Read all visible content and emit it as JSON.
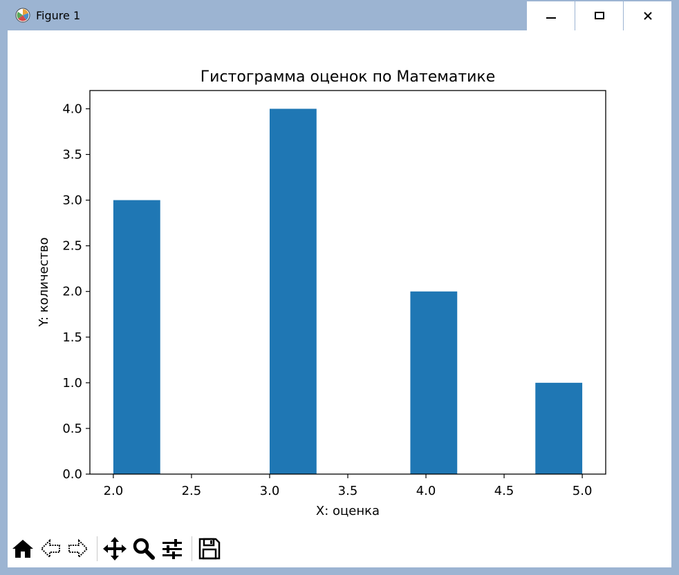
{
  "window": {
    "title": "Figure 1",
    "icon": "matplotlib-icon",
    "controls": {
      "minimize": "minimize-icon",
      "maximize": "maximize-icon",
      "close": "close-icon"
    }
  },
  "toolbar": {
    "buttons": [
      {
        "name": "home",
        "icon": "home-icon"
      },
      {
        "name": "back",
        "icon": "back-arrow-icon"
      },
      {
        "name": "forward",
        "icon": "forward-arrow-icon"
      },
      {
        "name": "pan",
        "icon": "move-icon"
      },
      {
        "name": "zoom",
        "icon": "zoom-icon"
      },
      {
        "name": "subplots",
        "icon": "sliders-icon"
      },
      {
        "name": "save",
        "icon": "save-icon"
      }
    ]
  },
  "chart_data": {
    "type": "bar",
    "title": "Гистограмма оценок по Математике",
    "xlabel": "X: оценка",
    "ylabel": "Y: количество",
    "bars": [
      {
        "x_start": 2.0,
        "x_end": 2.3,
        "value": 3
      },
      {
        "x_start": 3.0,
        "x_end": 3.3,
        "value": 4
      },
      {
        "x_start": 3.9,
        "x_end": 4.2,
        "value": 2
      },
      {
        "x_start": 4.7,
        "x_end": 5.0,
        "value": 1
      }
    ],
    "xlim": [
      1.85,
      5.15
    ],
    "ylim": [
      0,
      4.2
    ],
    "xticks": [
      2.0,
      2.5,
      3.0,
      3.5,
      4.0,
      4.5,
      5.0
    ],
    "xtick_labels": [
      "2.0",
      "2.5",
      "3.0",
      "3.5",
      "4.0",
      "4.5",
      "5.0"
    ],
    "yticks": [
      0.0,
      0.5,
      1.0,
      1.5,
      2.0,
      2.5,
      3.0,
      3.5,
      4.0
    ],
    "ytick_labels": [
      "0.0",
      "0.5",
      "1.0",
      "1.5",
      "2.0",
      "2.5",
      "3.0",
      "3.5",
      "4.0"
    ],
    "bar_color": "#1f77b4",
    "grid": false,
    "legend": false
  }
}
